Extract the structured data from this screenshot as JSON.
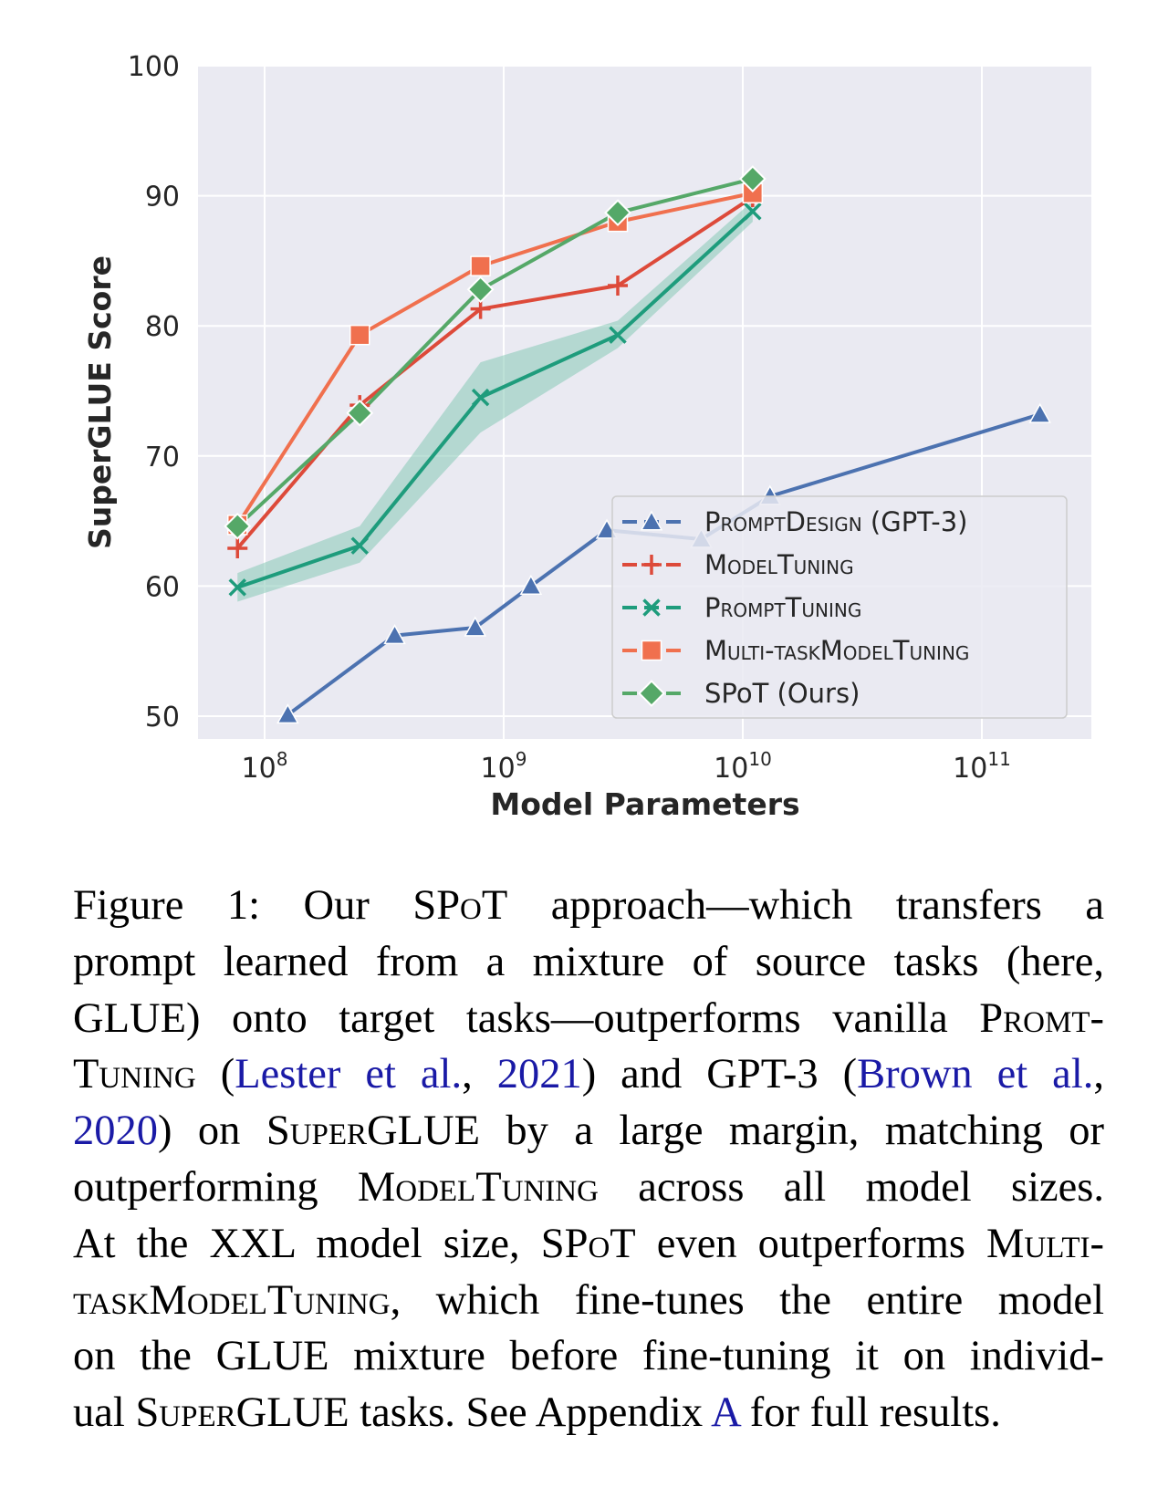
{
  "chart_data": {
    "type": "line",
    "xscale": "log",
    "xlabel": "Model Parameters",
    "ylabel": "SuperGLUE Score",
    "ylim": [
      50,
      100
    ],
    "yticks": [
      50,
      60,
      70,
      80,
      90,
      100
    ],
    "xticks": [
      {
        "base": "10",
        "exp": "8",
        "value": 100000000
      },
      {
        "base": "10",
        "exp": "9",
        "value": 1000000000
      },
      {
        "base": "10",
        "exp": "10",
        "value": 10000000000
      },
      {
        "base": "10",
        "exp": "11",
        "value": 100000000000
      }
    ],
    "legend_position": "lower-right",
    "series": [
      {
        "name": "PromptDesign (GPT-3)",
        "legend_parts": [
          {
            "t": "PromptDesign",
            "sc": true
          },
          {
            "t": " (GPT-3)",
            "sc": false
          }
        ],
        "color": "#4c72b0",
        "marker": "triangle",
        "x": [
          125000000,
          350000000,
          760000000,
          1300000000,
          2700000000,
          6700000000,
          13000000000,
          175000000000
        ],
        "y": [
          50.1,
          56.2,
          56.8,
          60.0,
          64.3,
          63.6,
          66.9,
          73.2
        ]
      },
      {
        "name": "ModelTuning",
        "legend_parts": [
          {
            "t": "ModelTuning",
            "sc": true
          }
        ],
        "color": "#dd4a3a",
        "marker": "plus",
        "x": [
          77000000,
          250000000,
          800000000,
          3000000000,
          11000000000
        ],
        "y": [
          62.9,
          73.9,
          81.3,
          83.1,
          89.9
        ]
      },
      {
        "name": "PromptTuning",
        "legend_parts": [
          {
            "t": "PromptTuning",
            "sc": true
          }
        ],
        "color": "#1e9c7c",
        "band_color": "#86c9b6",
        "marker": "x",
        "x": [
          77000000,
          250000000,
          800000000,
          3000000000,
          11000000000
        ],
        "y": [
          59.9,
          63.1,
          74.5,
          79.3,
          88.8
        ],
        "band_low": [
          58.8,
          61.8,
          71.8,
          78.3,
          88.0
        ],
        "band_high": [
          61.0,
          64.6,
          77.2,
          80.4,
          89.6
        ]
      },
      {
        "name": "Multi-taskModelTuning",
        "legend_parts": [
          {
            "t": "Multi-taskModelTuning",
            "sc": true
          }
        ],
        "color": "#f0704e",
        "marker": "square",
        "x": [
          77000000,
          250000000,
          800000000,
          3000000000,
          11000000000
        ],
        "y": [
          64.7,
          79.3,
          84.6,
          88.0,
          90.2
        ]
      },
      {
        "name": "SPoT (Ours)",
        "legend_parts": [
          {
            "t": "SPoT (Ours)",
            "sc": false
          }
        ],
        "color": "#55a868",
        "marker": "diamond",
        "x": [
          77000000,
          250000000,
          800000000,
          3000000000,
          11000000000
        ],
        "y": [
          64.6,
          73.3,
          82.8,
          88.7,
          91.3
        ]
      }
    ]
  },
  "caption": {
    "lines": [
      [
        {
          "t": "Figure 1:  Our "
        },
        {
          "t": "SPoT",
          "sc": true
        },
        {
          "t": " approach—which transfers a"
        }
      ],
      [
        {
          "t": "prompt learned from a mixture of source tasks (here,"
        }
      ],
      [
        {
          "t": "GLUE) onto target tasks—outperforms vanilla "
        },
        {
          "t": "Promt-",
          "sc": true
        }
      ],
      [
        {
          "t": "Tuning",
          "sc": true
        },
        {
          "t": " ("
        },
        {
          "t": "Lester et al.",
          "ref": true
        },
        {
          "t": ", "
        },
        {
          "t": "2021",
          "ref": true
        },
        {
          "t": ") and GPT-3 ("
        },
        {
          "t": "Brown et al.",
          "ref": true
        },
        {
          "t": ","
        }
      ],
      [
        {
          "t": "2020",
          "ref": true
        },
        {
          "t": ") on "
        },
        {
          "t": "SuperGLUE",
          "sc": true
        },
        {
          "t": " by a large margin, matching or"
        }
      ],
      [
        {
          "t": "outperforming "
        },
        {
          "t": "ModelTuning",
          "sc": true
        },
        {
          "t": " across all model sizes."
        }
      ],
      [
        {
          "t": "At the XXL model size, "
        },
        {
          "t": "SPoT",
          "sc": true
        },
        {
          "t": " even outperforms "
        },
        {
          "t": "Multi-",
          "sc": true
        }
      ],
      [
        {
          "t": "taskModelTuning",
          "sc": true
        },
        {
          "t": ", which fine-tunes the entire model"
        }
      ],
      [
        {
          "t": "on the GLUE mixture before fine-tuning it on individ-"
        }
      ],
      [
        {
          "t": "ual "
        },
        {
          "t": "SuperGLUE",
          "sc": true
        },
        {
          "t": " tasks. See Appendix "
        },
        {
          "t": "A",
          "ref": true
        },
        {
          "t": " for full results."
        }
      ]
    ]
  }
}
